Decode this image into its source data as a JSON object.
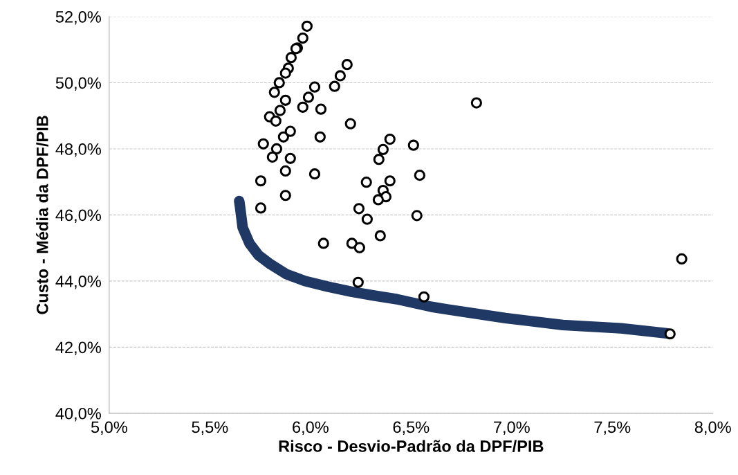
{
  "chart_data": {
    "type": "scatter",
    "xlabel": "Risco - Desvio-Padrão da DPF/PIB",
    "ylabel": "Custo - Média da DPF/PIB",
    "xlim": [
      5.0,
      8.0
    ],
    "ylim": [
      40.0,
      52.0
    ],
    "xticks": [
      {
        "value": 5.0,
        "label": "5,0%"
      },
      {
        "value": 5.5,
        "label": "5,5%"
      },
      {
        "value": 6.0,
        "label": "6,0%"
      },
      {
        "value": 6.5,
        "label": "6,5%"
      },
      {
        "value": 7.0,
        "label": "7,0%"
      },
      {
        "value": 7.5,
        "label": "7,5%"
      },
      {
        "value": 8.0,
        "label": "8,0%"
      }
    ],
    "yticks": [
      {
        "value": 40,
        "label": "40,0%"
      },
      {
        "value": 42,
        "label": "42,0%"
      },
      {
        "value": 44,
        "label": "44,0%"
      },
      {
        "value": 46,
        "label": "46,0%"
      },
      {
        "value": 48,
        "label": "48,0%"
      },
      {
        "value": 50,
        "label": "50,0%"
      },
      {
        "value": 52,
        "label": "52,0%"
      }
    ],
    "grid": "y",
    "series": [
      {
        "type": "line",
        "color": "#1f3864",
        "line_style": "solid",
        "x": [
          5.646,
          5.65,
          5.663,
          5.698,
          5.742,
          5.801,
          5.88,
          5.973,
          6.086,
          6.203,
          6.316,
          6.43,
          6.601,
          6.684,
          6.969,
          7.254,
          7.543,
          7.77
        ],
        "values": [
          46.42,
          46.25,
          45.62,
          45.13,
          44.78,
          44.51,
          44.21,
          44.0,
          43.83,
          43.68,
          43.56,
          43.45,
          43.22,
          43.14,
          42.88,
          42.67,
          42.57,
          42.42
        ]
      },
      {
        "color": "#000000",
        "marker": "circle",
        "x": [
          5.983,
          5.962,
          5.935,
          5.928,
          5.904,
          5.89,
          5.876,
          5.845,
          5.821,
          5.876,
          5.99,
          6.021,
          6.12,
          6.148,
          6.182,
          5.797,
          5.828,
          5.849,
          5.962,
          6.052,
          6.199,
          5.766,
          5.832,
          5.811,
          5.866,
          5.9,
          5.9,
          6.048,
          5.876,
          6.021,
          5.753,
          5.876,
          5.753,
          6.278,
          6.241,
          6.282,
          6.395,
          6.361,
          6.34,
          6.512,
          6.543,
          6.395,
          6.361,
          6.375,
          6.337,
          6.529,
          6.065,
          6.206,
          6.244,
          6.347,
          6.237,
          6.564,
          6.825,
          7.845,
          7.787
        ],
        "values": [
          51.71,
          51.35,
          51.05,
          51.03,
          50.76,
          50.44,
          50.29,
          50.0,
          49.71,
          49.47,
          49.56,
          49.87,
          49.89,
          50.21,
          50.55,
          48.97,
          48.84,
          49.16,
          49.26,
          49.2,
          48.76,
          48.15,
          48.0,
          47.75,
          48.36,
          48.53,
          47.71,
          48.36,
          47.33,
          47.24,
          47.03,
          46.59,
          46.21,
          46.99,
          46.19,
          45.87,
          48.29,
          47.98,
          47.68,
          48.11,
          47.2,
          47.03,
          46.74,
          46.55,
          46.46,
          45.98,
          45.14,
          45.14,
          45.01,
          45.37,
          43.96,
          43.52,
          49.39,
          44.67,
          42.4
        ]
      }
    ]
  }
}
